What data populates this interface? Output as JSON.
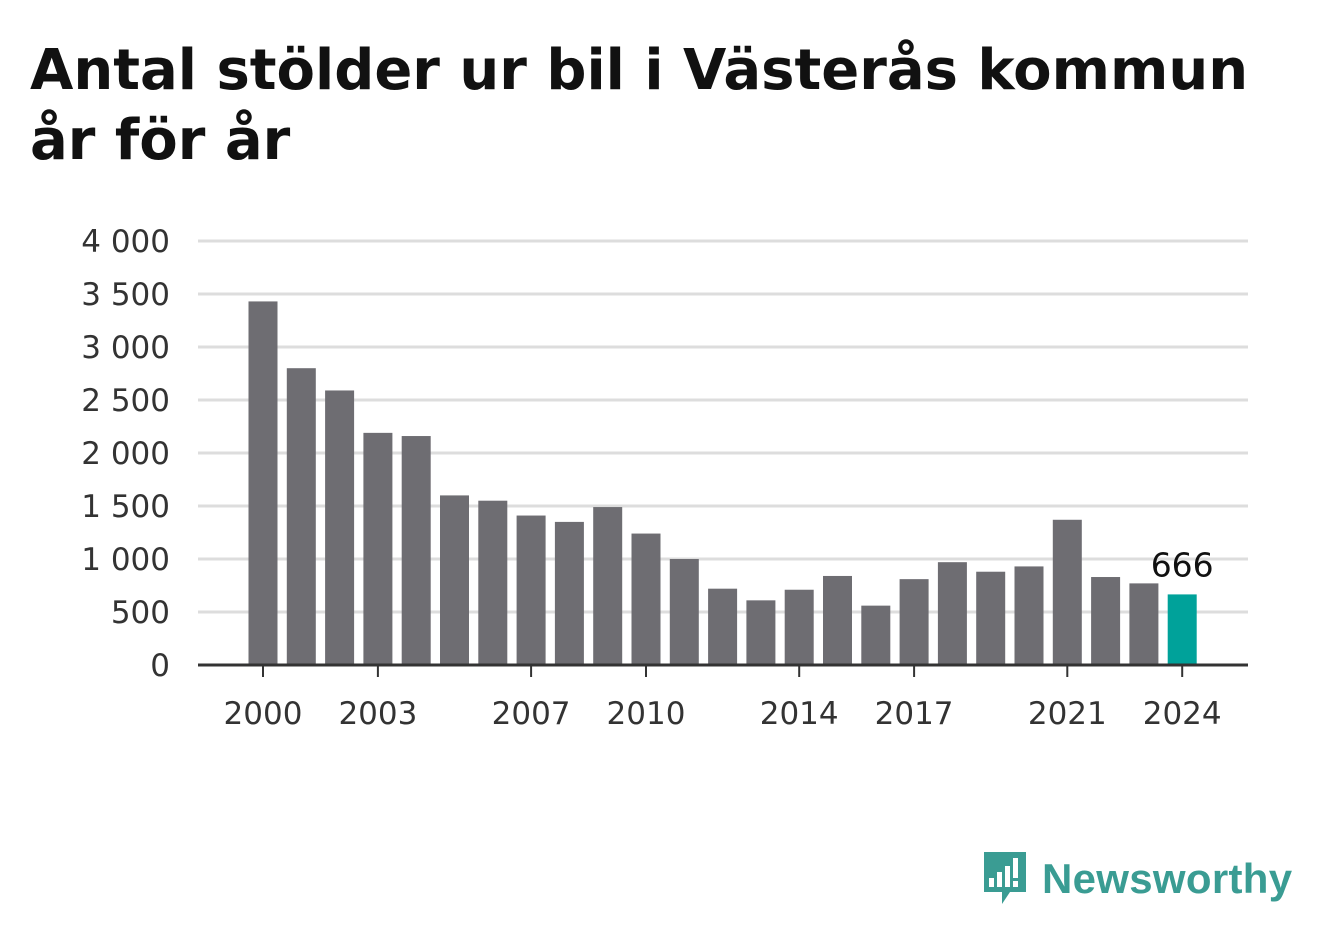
{
  "title": "Antal stölder ur bil i Västerås kommun år för år",
  "brand": {
    "name": "Newsworthy",
    "icon": "bar-chart-speech-bubble-icon",
    "color": "#3a9c93"
  },
  "colors": {
    "bar": "#6e6d72",
    "highlight": "#00a29a",
    "grid": "#dddddd",
    "axis": "#333333"
  },
  "chart_data": {
    "type": "bar",
    "categories": [
      "2000",
      "2001",
      "2002",
      "2003",
      "2004",
      "2005",
      "2006",
      "2007",
      "2008",
      "2009",
      "2010",
      "2011",
      "2012",
      "2013",
      "2014",
      "2015",
      "2016",
      "2017",
      "2018",
      "2019",
      "2020",
      "2021",
      "2022",
      "2023",
      "2024"
    ],
    "values": [
      3430,
      2800,
      2590,
      2190,
      2160,
      1600,
      1550,
      1410,
      1350,
      1490,
      1240,
      1000,
      720,
      610,
      710,
      840,
      560,
      810,
      970,
      880,
      930,
      1370,
      830,
      770,
      666
    ],
    "highlight_category": "2024",
    "data_labels": [
      {
        "category": "2024",
        "text": "666"
      }
    ],
    "x_tick_labels": [
      "2000",
      "2003",
      "2007",
      "2010",
      "2014",
      "2017",
      "2021",
      "2024"
    ],
    "y_ticks": [
      0,
      500,
      1000,
      1500,
      2000,
      2500,
      3000,
      3500,
      4000
    ],
    "y_tick_labels": [
      "0",
      "500",
      "1 000",
      "1 500",
      "2 000",
      "2 500",
      "3 000",
      "3 500",
      "4 000"
    ],
    "ylim": [
      0,
      4000
    ],
    "xlabel": "",
    "ylabel": "",
    "grid": true,
    "legend": "none"
  }
}
